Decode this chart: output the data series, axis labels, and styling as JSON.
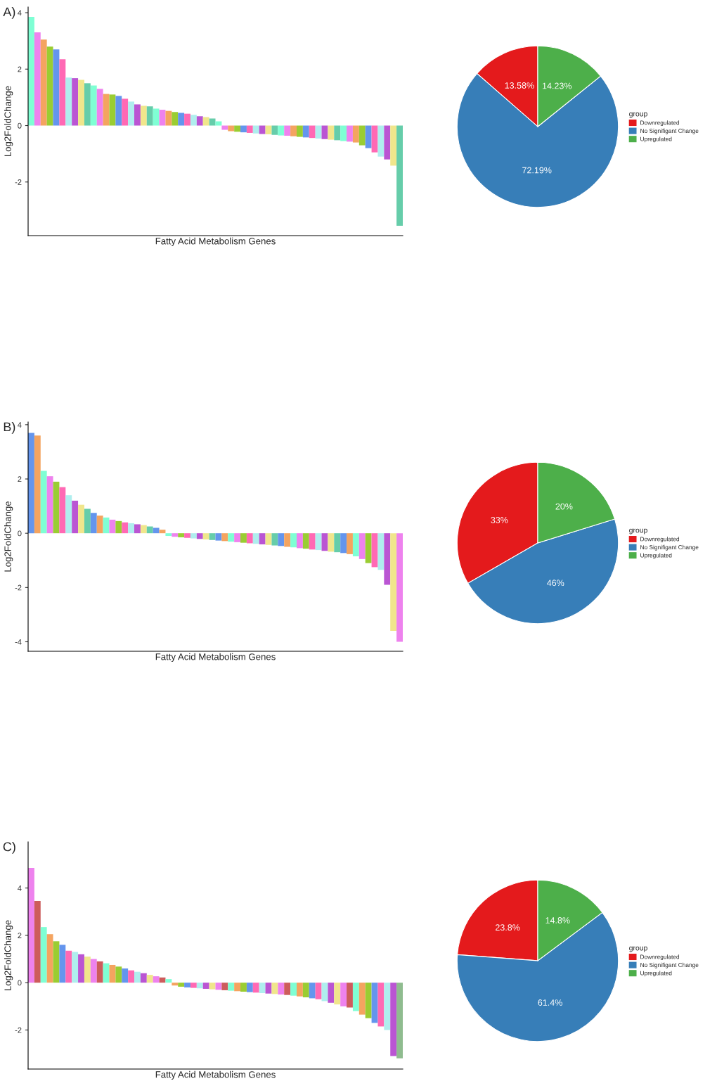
{
  "chart_data": [
    {
      "type": "bar",
      "title": "A)",
      "xlabel": "Fatty Acid Metabolism Genes",
      "ylabel": "Log2FoldChange",
      "ylim": [
        -3.9,
        4.2
      ],
      "yticks": [
        -2,
        0,
        2,
        4
      ],
      "tick_labels": "y",
      "categories": [
        null,
        null,
        null,
        null,
        null,
        null,
        null,
        null,
        null,
        null,
        null,
        null,
        null,
        null,
        null,
        null,
        null,
        null,
        null,
        null,
        null,
        null,
        null,
        null,
        null,
        null,
        null,
        null,
        null,
        null,
        null,
        null,
        null,
        null,
        null,
        null,
        null,
        null,
        null,
        null,
        null,
        null,
        null,
        null,
        null,
        null,
        null,
        null,
        null,
        null,
        null,
        null,
        null,
        null,
        null,
        null,
        null,
        null,
        null,
        null
      ],
      "values": [
        3.85,
        3.3,
        3.05,
        2.8,
        2.7,
        2.35,
        1.7,
        1.68,
        1.62,
        1.5,
        1.42,
        1.3,
        1.12,
        1.1,
        1.05,
        0.95,
        0.85,
        0.75,
        0.7,
        0.68,
        0.6,
        0.56,
        0.52,
        0.48,
        0.45,
        0.42,
        0.38,
        0.33,
        0.3,
        0.25,
        0.15,
        -0.15,
        -0.2,
        -0.22,
        -0.24,
        -0.26,
        -0.28,
        -0.3,
        -0.31,
        -0.33,
        -0.35,
        -0.36,
        -0.38,
        -0.4,
        -0.42,
        -0.44,
        -0.46,
        -0.48,
        -0.5,
        -0.52,
        -0.55,
        -0.57,
        -0.6,
        -0.7,
        -0.8,
        -0.95,
        -1.1,
        -1.2,
        -1.42,
        -3.55
      ],
      "colors": [
        "#7fffd4",
        "#ee82ee",
        "#f4a460",
        "#9acd32",
        "#6495ed",
        "#ff69b4",
        "#afeeee",
        "#ba55d3",
        "#f0e68c",
        "#66cdaa",
        "#7fffd4",
        "#ee82ee",
        "#f4a460",
        "#9acd32",
        "#6495ed",
        "#ff69b4",
        "#afeeee",
        "#ba55d3",
        "#f0e68c",
        "#66cdaa",
        "#7fffd4",
        "#ee82ee",
        "#f4a460",
        "#9acd32",
        "#6495ed",
        "#ff69b4",
        "#afeeee",
        "#ba55d3",
        "#f0e68c",
        "#66cdaa",
        "#7fffd4",
        "#ee82ee",
        "#f4a460",
        "#9acd32",
        "#6495ed",
        "#ff69b4",
        "#afeeee",
        "#ba55d3",
        "#f0e68c",
        "#66cdaa",
        "#7fffd4",
        "#ee82ee",
        "#f4a460",
        "#9acd32",
        "#6495ed",
        "#ff69b4",
        "#afeeee",
        "#ba55d3",
        "#f0e68c",
        "#66cdaa",
        "#7fffd4",
        "#ee82ee",
        "#f4a460",
        "#9acd32",
        "#6495ed",
        "#ff69b4",
        "#afeeee",
        "#ba55d3",
        "#f0e68c",
        "#66cdaa"
      ]
    },
    {
      "type": "pie",
      "legend_title": "group",
      "legend": "right",
      "categories": [
        "Downregulated",
        "No Signifigant Change",
        "Upregulated"
      ],
      "values": [
        13.58,
        72.19,
        14.23
      ],
      "value_labels": [
        "13.58%",
        "72.19%",
        "14.23%"
      ],
      "colors": [
        "#e41a1c",
        "#377eb8",
        "#4daf4a"
      ]
    },
    {
      "type": "bar",
      "title": "B)",
      "xlabel": "Fatty Acid Metabolism Genes",
      "ylabel": "Log2FoldChange",
      "ylim": [
        -4.35,
        4.1
      ],
      "yticks": [
        -4,
        -2,
        0,
        2,
        4
      ],
      "tick_labels": "y",
      "categories": [
        null,
        null,
        null,
        null,
        null,
        null,
        null,
        null,
        null,
        null,
        null,
        null,
        null,
        null,
        null,
        null,
        null,
        null,
        null,
        null,
        null,
        null,
        null,
        null,
        null,
        null,
        null,
        null,
        null,
        null,
        null,
        null,
        null,
        null,
        null,
        null,
        null,
        null,
        null,
        null,
        null,
        null,
        null,
        null,
        null,
        null,
        null,
        null,
        null,
        null,
        null,
        null,
        null,
        null,
        null,
        null,
        null,
        null,
        null,
        null
      ],
      "values": [
        3.7,
        3.6,
        2.3,
        2.1,
        1.9,
        1.7,
        1.4,
        1.2,
        1.05,
        0.9,
        0.75,
        0.65,
        0.58,
        0.5,
        0.45,
        0.4,
        0.37,
        0.33,
        0.3,
        0.25,
        0.2,
        0.13,
        -0.1,
        -0.13,
        -0.15,
        -0.17,
        -0.19,
        -0.21,
        -0.23,
        -0.25,
        -0.27,
        -0.29,
        -0.31,
        -0.33,
        -0.35,
        -0.37,
        -0.39,
        -0.41,
        -0.43,
        -0.45,
        -0.47,
        -0.5,
        -0.52,
        -0.55,
        -0.57,
        -0.6,
        -0.62,
        -0.65,
        -0.68,
        -0.7,
        -0.73,
        -0.77,
        -0.85,
        -0.95,
        -1.1,
        -1.25,
        -1.35,
        -1.9,
        -3.6,
        -4.0
      ],
      "colors": [
        "#6495ed",
        "#f4a460",
        "#7fffd4",
        "#ee82ee",
        "#9acd32",
        "#ff69b4",
        "#afeeee",
        "#ba55d3",
        "#f0e68c",
        "#66cdaa",
        "#6495ed",
        "#f4a460",
        "#7fffd4",
        "#ee82ee",
        "#9acd32",
        "#ff69b4",
        "#afeeee",
        "#ba55d3",
        "#f0e68c",
        "#66cdaa",
        "#6495ed",
        "#f4a460",
        "#7fffd4",
        "#ee82ee",
        "#9acd32",
        "#ff69b4",
        "#afeeee",
        "#ba55d3",
        "#f0e68c",
        "#66cdaa",
        "#6495ed",
        "#f4a460",
        "#7fffd4",
        "#ee82ee",
        "#9acd32",
        "#ff69b4",
        "#afeeee",
        "#ba55d3",
        "#f0e68c",
        "#66cdaa",
        "#6495ed",
        "#f4a460",
        "#7fffd4",
        "#ee82ee",
        "#9acd32",
        "#ff69b4",
        "#afeeee",
        "#ba55d3",
        "#f0e68c",
        "#66cdaa",
        "#6495ed",
        "#f4a460",
        "#7fffd4",
        "#ee82ee",
        "#9acd32",
        "#ff69b4",
        "#afeeee",
        "#ba55d3",
        "#f0e68c",
        "#ee82ee"
      ]
    },
    {
      "type": "pie",
      "legend_title": "group",
      "legend": "right",
      "categories": [
        "Downregulated",
        "No Signifigant Change",
        "Upregulated"
      ],
      "values": [
        33,
        46,
        20
      ],
      "value_labels": [
        "33%",
        "46%",
        "20%"
      ],
      "colors": [
        "#e41a1c",
        "#377eb8",
        "#4daf4a"
      ]
    },
    {
      "type": "bar",
      "title": "C)",
      "xlabel": "Fatty Acid Metabolism Genes",
      "ylabel": "Log2FoldChange",
      "ylim": [
        -3.65,
        5.95
      ],
      "yticks": [
        -2,
        0,
        2,
        4
      ],
      "tick_labels": "y",
      "categories": [
        null,
        null,
        null,
        null,
        null,
        null,
        null,
        null,
        null,
        null,
        null,
        null,
        null,
        null,
        null,
        null,
        null,
        null,
        null,
        null,
        null,
        null,
        null,
        null,
        null,
        null,
        null,
        null,
        null,
        null,
        null,
        null,
        null,
        null,
        null,
        null,
        null,
        null,
        null,
        null,
        null,
        null,
        null,
        null,
        null,
        null,
        null,
        null,
        null,
        null,
        null,
        null,
        null,
        null,
        null,
        null,
        null,
        null,
        null,
        null
      ],
      "values": [
        4.85,
        3.45,
        2.35,
        2.05,
        1.75,
        1.6,
        1.35,
        1.3,
        1.2,
        1.1,
        1.0,
        0.9,
        0.82,
        0.75,
        0.68,
        0.6,
        0.52,
        0.46,
        0.4,
        0.33,
        0.27,
        0.22,
        0.15,
        -0.12,
        -0.17,
        -0.2,
        -0.22,
        -0.24,
        -0.26,
        -0.28,
        -0.3,
        -0.32,
        -0.34,
        -0.36,
        -0.38,
        -0.4,
        -0.42,
        -0.44,
        -0.46,
        -0.48,
        -0.5,
        -0.52,
        -0.55,
        -0.58,
        -0.62,
        -0.66,
        -0.7,
        -0.78,
        -0.85,
        -0.92,
        -1.0,
        -1.05,
        -1.2,
        -1.35,
        -1.5,
        -1.7,
        -1.85,
        -2.0,
        -3.1,
        -3.2
      ],
      "colors": [
        "#ee82ee",
        "#cd5c5c",
        "#7fffd4",
        "#f4a460",
        "#9acd32",
        "#6495ed",
        "#ff69b4",
        "#afeeee",
        "#ba55d3",
        "#f0e68c",
        "#ee82ee",
        "#cd5c5c",
        "#7fffd4",
        "#f4a460",
        "#9acd32",
        "#6495ed",
        "#ff69b4",
        "#afeeee",
        "#ba55d3",
        "#f0e68c",
        "#ee82ee",
        "#cd5c5c",
        "#7fffd4",
        "#f4a460",
        "#9acd32",
        "#6495ed",
        "#ff69b4",
        "#afeeee",
        "#ba55d3",
        "#f0e68c",
        "#ee82ee",
        "#cd5c5c",
        "#7fffd4",
        "#f4a460",
        "#9acd32",
        "#6495ed",
        "#ff69b4",
        "#afeeee",
        "#ba55d3",
        "#f0e68c",
        "#ee82ee",
        "#cd5c5c",
        "#7fffd4",
        "#f4a460",
        "#9acd32",
        "#6495ed",
        "#ff69b4",
        "#afeeee",
        "#ba55d3",
        "#f0e68c",
        "#ee82ee",
        "#cd5c5c",
        "#7fffd4",
        "#f4a460",
        "#9acd32",
        "#6495ed",
        "#ff69b4",
        "#afeeee",
        "#ba55d3",
        "#8fbc8f"
      ]
    },
    {
      "type": "pie",
      "legend_title": "group",
      "legend": "right",
      "categories": [
        "Downregulated",
        "No Signifigant Change",
        "Upregulated"
      ],
      "values": [
        23.8,
        61.4,
        14.8
      ],
      "value_labels": [
        "23.8%",
        "61.4%",
        "14.8%"
      ],
      "colors": [
        "#e41a1c",
        "#377eb8",
        "#4daf4a"
      ]
    }
  ]
}
